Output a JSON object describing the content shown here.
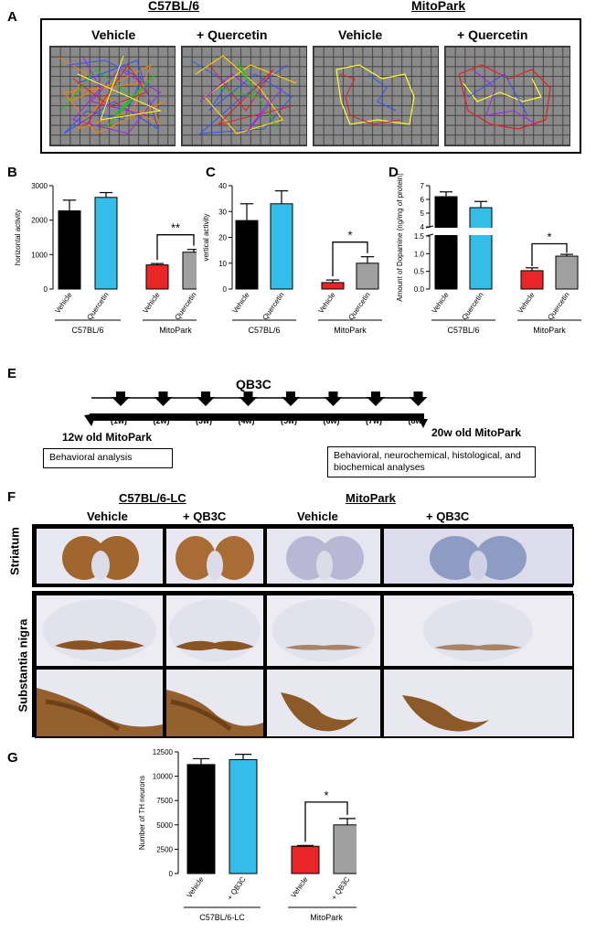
{
  "panelA": {
    "label": "A",
    "group_left": "C57BL/6",
    "group_right": "MitoPark",
    "conditions": [
      "Vehicle",
      "+ Quercetin",
      "Vehicle",
      "+ Quercetin"
    ]
  },
  "panelE": {
    "label": "E",
    "title": "QB3C",
    "weeks": [
      "(1w)",
      "(2w)",
      "(3w)",
      "(4w)",
      "(5w)",
      "(6w)",
      "(7w)",
      "(8w)"
    ],
    "start_label": "12w old MitoPark",
    "end_label": "20w old MitoPark",
    "box_left": "Behavioral analysis",
    "box_right": "Behavioral, neurochemical, histological, and biochemical analyses"
  },
  "panelF": {
    "label": "F",
    "group_left": "C57BL/6-LC",
    "group_right": "MitoPark",
    "conditions": [
      "Vehicle",
      "+ QB3C",
      "Vehicle",
      "+ QB3C"
    ],
    "row_labels": [
      "Striatum",
      "Substantia nigra"
    ]
  },
  "chart_data": [
    {
      "id": "B",
      "type": "bar",
      "ylabel": "horizontal activity",
      "ylim": [
        0,
        3000
      ],
      "yticks": [
        0,
        1000,
        2000,
        3000
      ],
      "categories": [
        "Vehicle",
        "Quercetin",
        "Vehicle",
        "Quercetin"
      ],
      "values": [
        2270,
        2660,
        700,
        1070
      ],
      "errors": [
        310,
        140,
        40,
        80
      ],
      "colors": [
        "#000000",
        "#33bde8",
        "#e82626",
        "#a0a0a0"
      ],
      "groups": [
        "C57BL/6",
        "MitoPark"
      ],
      "significance": "**"
    },
    {
      "id": "C",
      "type": "bar",
      "ylabel": "vertical activity",
      "ylim": [
        0,
        40
      ],
      "yticks": [
        0,
        10,
        20,
        30,
        40
      ],
      "categories": [
        "Vehicle",
        "Quercetin",
        "Vehicle",
        "Quercetin"
      ],
      "values": [
        26.5,
        33,
        2.5,
        10
      ],
      "errors": [
        6.5,
        5,
        1,
        2.5
      ],
      "colors": [
        "#000000",
        "#33bde8",
        "#e82626",
        "#a0a0a0"
      ],
      "groups": [
        "C57BL/6",
        "MitoPark"
      ],
      "significance": "*"
    },
    {
      "id": "D",
      "type": "bar",
      "ylabel": "Amount of Dopamine (ng/mg of protein)",
      "axis_break": [
        1.5,
        4
      ],
      "yticks": [
        0.0,
        0.5,
        1.0,
        1.5,
        4,
        5,
        6,
        7
      ],
      "ytick_labels": [
        "0.0",
        "0.5",
        "1.0",
        "1.5",
        "4",
        "5",
        "6",
        "7"
      ],
      "categories": [
        "Vehicle",
        "Quercetin",
        "Vehicle",
        "Quercetin"
      ],
      "values": [
        6.2,
        5.4,
        0.52,
        0.93
      ],
      "errors": [
        0.35,
        0.45,
        0.08,
        0.05
      ],
      "colors": [
        "#000000",
        "#33bde8",
        "#e82626",
        "#a0a0a0"
      ],
      "groups": [
        "C57BL/6",
        "MitoPark"
      ],
      "significance": "*"
    },
    {
      "id": "G",
      "type": "bar",
      "ylabel": "Number of TH neurons",
      "ylim": [
        0,
        12500
      ],
      "yticks": [
        0,
        2500,
        5000,
        7500,
        10000,
        12500
      ],
      "categories": [
        "Vehicle",
        "+ QB3C",
        "Vehicle",
        "+ QB3C"
      ],
      "values": [
        11200,
        11700,
        2800,
        5000
      ],
      "errors": [
        600,
        550,
        80,
        650
      ],
      "colors": [
        "#000000",
        "#33bde8",
        "#e82626",
        "#a0a0a0"
      ],
      "groups": [
        "C57BL/6-LC",
        "MitoPark"
      ],
      "significance": "*"
    }
  ]
}
